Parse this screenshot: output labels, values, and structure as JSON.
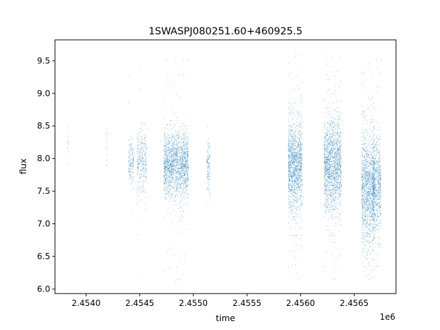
{
  "chart_data": {
    "type": "scatter",
    "title": "1SWASPJ080251.60+460925.5",
    "xlabel": "time",
    "ylabel": "flux",
    "x_offset_label": "1e6",
    "xlim": [
      2.45371,
      2.45689
    ],
    "ylim": [
      5.93,
      9.82
    ],
    "x_ticks": [
      2.454,
      2.4545,
      2.455,
      2.4555,
      2.456,
      2.4565
    ],
    "x_tick_labels": [
      "2.4540",
      "2.4545",
      "2.4550",
      "2.4555",
      "2.4560",
      "2.4565"
    ],
    "y_ticks": [
      6.0,
      6.5,
      7.0,
      7.5,
      8.0,
      8.5,
      9.0,
      9.5
    ],
    "y_tick_labels": [
      "6.0",
      "6.5",
      "7.0",
      "7.5",
      "8.0",
      "8.5",
      "9.0",
      "9.5"
    ],
    "grid": false,
    "marker_color": "#1f77b4",
    "series": [
      {
        "clusters": [
          {
            "x": 2.45383,
            "width": 2e-05,
            "y": 8.2,
            "spread": 0.2,
            "min": 7.9,
            "max": 8.55,
            "n": 12
          },
          {
            "x": 2.45419,
            "width": 2e-05,
            "y": 8.2,
            "spread": 0.2,
            "min": 7.85,
            "max": 8.65,
            "n": 12
          },
          {
            "x": 2.45442,
            "width": 5e-05,
            "y": 7.95,
            "spread": 0.18,
            "min": 6.2,
            "max": 9.35,
            "n": 150
          },
          {
            "x": 2.45452,
            "width": 9e-05,
            "y": 7.95,
            "spread": 0.25,
            "min": 6.1,
            "max": 9.6,
            "n": 300
          },
          {
            "x": 2.45484,
            "width": 0.00023,
            "y": 7.9,
            "spread": 0.25,
            "min": 6.1,
            "max": 9.6,
            "n": 1700
          },
          {
            "x": 2.45514,
            "width": 3e-05,
            "y": 7.9,
            "spread": 0.2,
            "min": 7.1,
            "max": 8.55,
            "n": 120
          },
          {
            "x": 2.45595,
            "width": 0.00013,
            "y": 7.9,
            "spread": 0.35,
            "min": 6.1,
            "max": 9.65,
            "n": 1400
          },
          {
            "x": 2.4563,
            "width": 0.00016,
            "y": 7.9,
            "spread": 0.35,
            "min": 6.1,
            "max": 9.65,
            "n": 1600
          },
          {
            "x": 2.45663,
            "width": 0.00012,
            "y": 7.55,
            "spread": 0.45,
            "min": 6.1,
            "max": 9.5,
            "n": 1300
          },
          {
            "x": 2.45671,
            "width": 8e-05,
            "y": 7.6,
            "spread": 0.35,
            "min": 6.3,
            "max": 9.6,
            "n": 700
          }
        ]
      }
    ]
  }
}
